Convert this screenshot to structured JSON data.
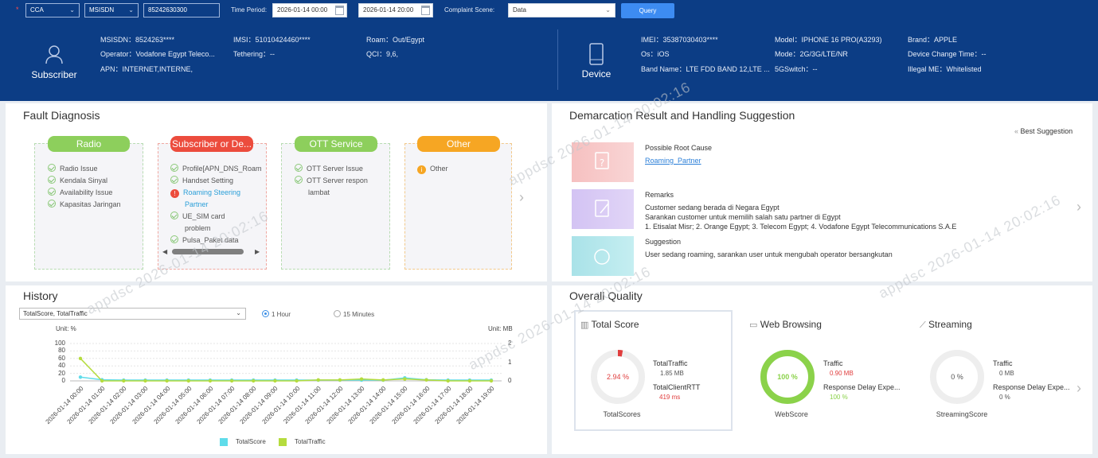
{
  "query": {
    "scope": "CCA",
    "id_type": "MSISDN",
    "id_value": "85242630300",
    "time_period_label": "Time Period:",
    "start": "2026-01-14 00:00",
    "end": "2026-01-14 20:00",
    "complaint_scene_label": "Complaint Scene:",
    "complaint_scene": "Data",
    "query_button": "Query"
  },
  "subscriber": {
    "label": "Subscriber",
    "msisdn": "MSISDN：8524263****",
    "imsi": "IMSI：51010424460****",
    "roam": "Roam：Out/Egypt",
    "operator": "Operator：Vodafone Egypt Teleco...",
    "tethering": "Tethering：--",
    "qci": "QCI：9,6,",
    "apn": "APN：INTERNET,INTERNE,"
  },
  "device": {
    "label": "Device",
    "imei": "IMEI：35387030403****",
    "model": "Model：IPHONE 16 PRO(A3293)",
    "brand": "Brand：APPLE",
    "os": "Os：iOS",
    "mode": "Mode：2G/3G/LTE/NR",
    "change_time": "Device Change Time：--",
    "band": "Band Name：LTE FDD BAND 12,LTE ...",
    "switch5g": "5GSwitch：--",
    "illegal": "Illegal ME：Whitelisted"
  },
  "fault": {
    "title": "Fault Diagnosis",
    "radio": {
      "label": "Radio",
      "items": [
        "Radio Issue",
        "Kendala Sinyal",
        "Availability Issue",
        "Kapasitas Jaringan"
      ]
    },
    "subscriber": {
      "label": "Subscriber or De...",
      "items": [
        "Profile[APN_DNS_Roam",
        "Handset Setting",
        "Roaming Steering",
        "Partner",
        "UE_SIM card",
        "problem",
        "Pulsa_Paket data"
      ]
    },
    "ott": {
      "label": "OTT Service",
      "items": [
        "OTT Server Issue",
        "OTT Server respon",
        "lambat"
      ]
    },
    "other": {
      "label": "Other",
      "items": [
        "Other"
      ]
    },
    "colors": {
      "green": "#8dcf5c",
      "red": "#ec4c3d",
      "orange": "#f6a623"
    }
  },
  "demarcation": {
    "title": "Demarcation Result and Handling Suggestion",
    "best": "Best Suggestion",
    "root_cause_label": "Possible Root Cause",
    "root_cause_value": "Roaming_Partner",
    "remarks_label": "Remarks",
    "remarks_1": "Customer sedang berada di Negara Egypt",
    "remarks_2": "Sarankan customer untuk memilih salah satu partner di Egypt",
    "remarks_3": "1. Etisalat Misr; 2. Orange Egypt; 3. Telecom Egypt; 4. Vodafone Egypt Telecommunications S.A.E",
    "suggestion_label": "Suggestion",
    "suggestion_value": "User sedang roaming, sarankan user untuk mengubah operator bersangkutan"
  },
  "history": {
    "title": "History",
    "metric_select": "TotalScore, TotalTraffic",
    "opt_hour": "1 Hour",
    "opt_min": "15 Minutes",
    "unit_left": "Unit: %",
    "unit_right": "Unit: MB",
    "legend_score": "TotalScore",
    "legend_traffic": "TotalTraffic"
  },
  "chart_data": {
    "type": "line",
    "x": [
      "2026-01-14 00:00",
      "2026-01-14 01:00",
      "2026-01-14 02:00",
      "2026-01-14 03:00",
      "2026-01-14 04:00",
      "2026-01-14 05:00",
      "2026-01-14 06:00",
      "2026-01-14 07:00",
      "2026-01-14 08:00",
      "2026-01-14 09:00",
      "2026-01-14 10:00",
      "2026-01-14 11:00",
      "2026-01-14 12:00",
      "2026-01-14 13:00",
      "2026-01-14 14:00",
      "2026-01-14 15:00",
      "2026-01-14 16:00",
      "2026-01-14 17:00",
      "2026-01-14 18:00",
      "2026-01-14 19:00"
    ],
    "y_left_ticks": [
      0,
      20,
      40,
      60,
      80,
      100
    ],
    "y_right_ticks": [
      0,
      1,
      2
    ],
    "series": [
      {
        "name": "TotalScore",
        "axis": "left",
        "color": "#5fdcea",
        "values": [
          10,
          3,
          2,
          2,
          2,
          2,
          2,
          2,
          2,
          2,
          2,
          2,
          2,
          2,
          2,
          8,
          3,
          2,
          2,
          2
        ]
      },
      {
        "name": "TotalTraffic",
        "axis": "right",
        "color": "#b5dc3e",
        "values": [
          1.2,
          0,
          0,
          0,
          0,
          0,
          0,
          0,
          0,
          0,
          0,
          0.05,
          0.05,
          0.1,
          0.05,
          0.1,
          0.05,
          0,
          0,
          0
        ]
      }
    ],
    "ylim_left": [
      0,
      100
    ],
    "ylim_right": [
      0,
      2
    ],
    "grid": true,
    "legend": "bottom"
  },
  "quality": {
    "title": "Overall Quality",
    "total": {
      "title": "Total Score",
      "value": "2.94 %",
      "pct": 2.94,
      "caption": "TotalScores",
      "k1": "TotalTraffic",
      "v1": "1.85 MB",
      "k2": "TotalClientRTT",
      "v2": "419 ms"
    },
    "web": {
      "title": "Web Browsing",
      "value": "100 %",
      "pct": 100,
      "caption": "WebScore",
      "k1": "Traffic",
      "v1": "0.90 MB",
      "k2": "Response Delay Expe...",
      "v2": "100 %"
    },
    "stream": {
      "title": "Streaming",
      "value": "0 %",
      "pct": 0,
      "caption": "StreamingScore",
      "k1": "Traffic",
      "v1": "0 MB",
      "k2": "Response Delay Expe...",
      "v2": "0 %"
    }
  },
  "watermark": "appdsc 2026-01-14 20:02:16"
}
